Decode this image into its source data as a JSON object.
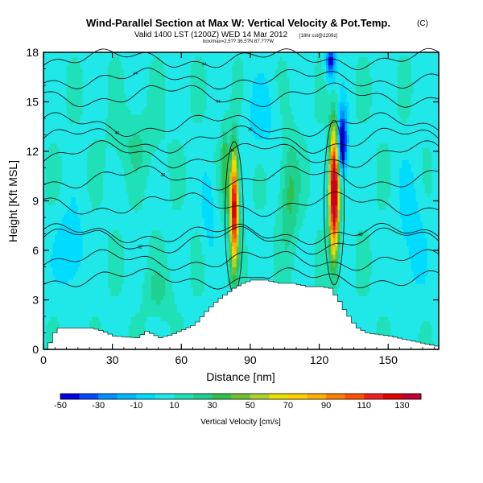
{
  "chart_data": {
    "type": "heatmap",
    "title": "Wind-Parallel Section at Max W: Vertical Velocity & Pot.Temp.",
    "title_mark": "(C)",
    "subtitle": "Valid 1400 LST (1200Z) WED 14 Mar 2012",
    "subtitle_extra": "[18hr cst@2209z]",
    "info_line": "box/max=2.5?? 36.5?N 87.???W",
    "xlabel": "Distance [nm]",
    "ylabel": "Height [Kft MSL]",
    "xlim": [
      0,
      172
    ],
    "ylim": [
      0,
      18
    ],
    "x_ticks": [
      0,
      30,
      60,
      90,
      120,
      150
    ],
    "y_ticks": [
      0,
      3,
      6,
      9,
      12,
      15,
      18
    ],
    "colorbar": {
      "title": "Vertical Velocity [cm/s]",
      "range": [
        -50,
        140
      ],
      "tick_labels": [
        "-50",
        "-30",
        "-10",
        "10",
        "30",
        "50",
        "70",
        "90",
        "110",
        "130"
      ],
      "tick_values": [
        -50,
        -30,
        -10,
        10,
        30,
        50,
        70,
        90,
        110,
        130
      ],
      "bins": [
        -50,
        -40,
        -30,
        -20,
        -10,
        0,
        10,
        20,
        30,
        40,
        50,
        60,
        70,
        80,
        90,
        100,
        110,
        120,
        130,
        140
      ],
      "colors": [
        "#0000e0",
        "#0048ff",
        "#0090ff",
        "#00b8ff",
        "#00dcff",
        "#20e8e8",
        "#20e0b8",
        "#20d090",
        "#30c050",
        "#70c030",
        "#b0d030",
        "#e8e000",
        "#ffd000",
        "#ffb000",
        "#ff8000",
        "#ff5000",
        "#f02020",
        "#e00000",
        "#c00030"
      ]
    },
    "background_vv": 8,
    "terrain": {
      "x": [
        0,
        2,
        4,
        6,
        10,
        20,
        25,
        30,
        40,
        44,
        50,
        55,
        60,
        65,
        70,
        75,
        78,
        82,
        86,
        90,
        96,
        102,
        108,
        114,
        120,
        124,
        126,
        128,
        130,
        132,
        134,
        136,
        140,
        150,
        160,
        170,
        172
      ],
      "height": [
        0,
        0.4,
        1.0,
        1.3,
        1.3,
        1.3,
        1.1,
        0.8,
        0.7,
        1.1,
        0.7,
        0.9,
        1.2,
        1.5,
        2.3,
        3.0,
        3.3,
        3.7,
        4.0,
        4.2,
        4.2,
        4.0,
        4.0,
        3.8,
        3.8,
        3.7,
        3.3,
        2.9,
        2.4,
        2.0,
        1.6,
        1.3,
        1.0,
        0.8,
        0.5,
        0.2,
        0
      ]
    },
    "features": [
      {
        "x": 83,
        "z": 8.6,
        "sx": 1.8,
        "sz": 3.4,
        "amp": 125
      },
      {
        "x": 126.5,
        "z": 9.5,
        "sx": 2.0,
        "sz": 3.7,
        "amp": 150
      },
      {
        "x": 79,
        "z": 11.0,
        "sx": 1.5,
        "sz": 2.6,
        "amp": 30
      },
      {
        "x": 130,
        "z": 12.5,
        "sx": 2.2,
        "sz": 2.0,
        "amp": -70
      },
      {
        "x": 125,
        "z": 17.5,
        "sx": 2.0,
        "sz": 1.2,
        "amp": -55
      },
      {
        "x": 12,
        "z": 6.0,
        "sx": 6.0,
        "sz": 2.5,
        "amp": -20
      },
      {
        "x": 72,
        "z": 8.5,
        "sx": 3.0,
        "sz": 2.5,
        "amp": -15
      },
      {
        "x": 107,
        "z": 9.5,
        "sx": 4.0,
        "sz": 3.5,
        "amp": 25
      },
      {
        "x": 40,
        "z": 12.5,
        "sx": 10.0,
        "sz": 2.0,
        "amp": 12
      },
      {
        "x": 160,
        "z": 7.0,
        "sx": 6.0,
        "sz": 4.0,
        "amp": -14
      },
      {
        "x": 50,
        "z": 3.5,
        "sx": 6.0,
        "sz": 1.5,
        "amp": 14
      },
      {
        "x": 95,
        "z": 14.0,
        "sx": 8.0,
        "sz": 2.5,
        "amp": -12
      }
    ],
    "theta_lines": [
      {
        "label": "44",
        "base": 17.6,
        "amp": 0.4,
        "label_x": 70
      },
      {
        "label": "44",
        "base": 16.4,
        "amp": 0.4,
        "label_x": 40
      },
      {
        "label": "44",
        "base": 15.4,
        "amp": 0.5,
        "label_x": 76
      },
      {
        "label": "40",
        "base": 13.6,
        "amp": 0.5,
        "label_x": 32
      },
      {
        "label": "36",
        "base": 12.7,
        "amp": 0.6,
        "label_x": 90
      },
      {
        "label": "36",
        "base": 11.8,
        "amp": 0.6,
        "label_x": 82
      },
      {
        "label": "32",
        "base": 10.4,
        "amp": 0.5,
        "label_x": 52
      },
      {
        "label": "",
        "base": 8.8,
        "amp": 0.5,
        "label_x": 0
      },
      {
        "label": "32",
        "base": 6.6,
        "amp": 0.6,
        "label_x": 42
      },
      {
        "label": "30",
        "base": 7.0,
        "amp": 0.4,
        "label_x": 138
      },
      {
        "label": "",
        "base": 5.4,
        "amp": 0.4,
        "label_x": 0
      },
      {
        "label": "",
        "base": 4.3,
        "amp": 0.4,
        "label_x": 0
      }
    ]
  }
}
